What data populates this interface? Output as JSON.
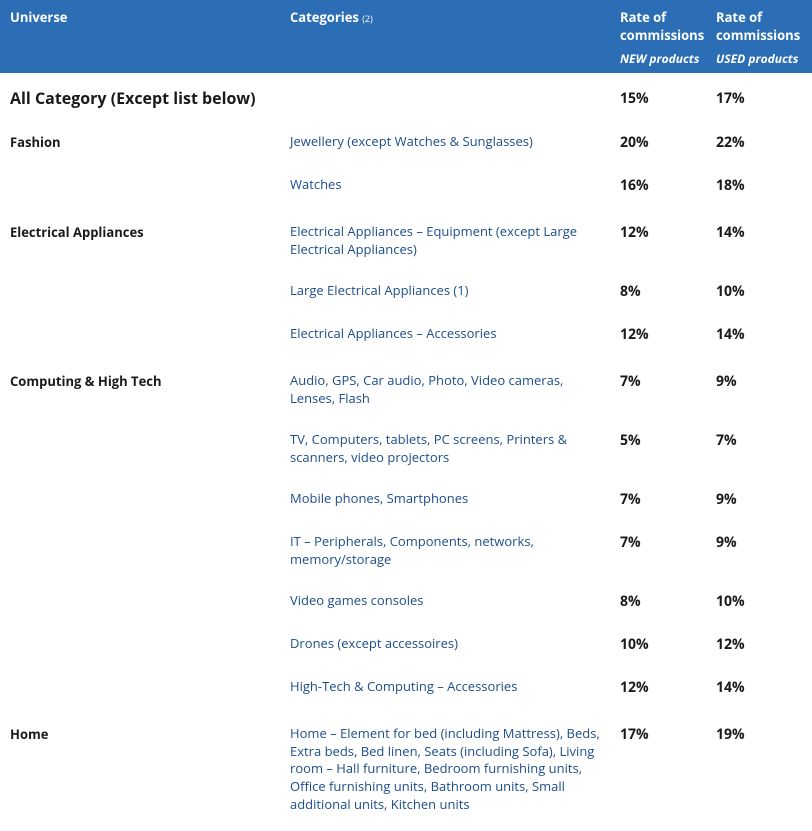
{
  "colors": {
    "header_bg": "#2c6eb5",
    "header_text": "#ffffff",
    "body_text": "#1a1a1a",
    "category_text": "#1d4e89",
    "row_bg": "#ffffff"
  },
  "header": {
    "universe": "Universe",
    "categories": "Categories",
    "categories_footnote": "(2)",
    "rate_new_line1": "Rate of",
    "rate_new_line2": "commissions",
    "rate_new_sub": "NEW products",
    "rate_used_line1": "Rate of",
    "rate_used_line2": "commissions",
    "rate_used_sub": "USED products"
  },
  "grand": {
    "label": "All Category (Except list below)",
    "new": "15%",
    "used": "17%"
  },
  "groups": [
    {
      "universe": "Fashion",
      "rows": [
        {
          "category": "Jewellery (except Watches & Sunglasses)",
          "new": "20%",
          "used": "22%"
        },
        {
          "category": "Watches",
          "new": "16%",
          "used": "18%"
        }
      ]
    },
    {
      "universe": "Electrical Appliances",
      "rows": [
        {
          "category": "Electrical Appliances – Equipment (except Large Electrical Appliances)",
          "new": "12%",
          "used": "14%"
        },
        {
          "category": "Large Electrical Appliances (1)",
          "new": "8%",
          "used": "10%"
        },
        {
          "category": "Electrical Appliances – Accessories",
          "new": "12%",
          "used": "14%"
        }
      ]
    },
    {
      "universe": "Computing & High Tech",
      "rows": [
        {
          "category": "Audio, GPS, Car audio, Photo, Video cameras, Lenses, Flash",
          "new": "7%",
          "used": "9%"
        },
        {
          "category": "TV, Computers, tablets, PC screens, Printers & scanners, video projectors",
          "new": "5%",
          "used": "7%"
        },
        {
          "category": "Mobile phones, Smartphones",
          "new": "7%",
          "used": "9%"
        },
        {
          "category": "IT – Peripherals, Components, networks, memory/storage",
          "new": "7%",
          "used": "9%"
        },
        {
          "category": "Video games consoles",
          "new": "8%",
          "used": "10%"
        },
        {
          "category": "Drones (except accessoires)",
          "new": "10%",
          "used": "12%"
        },
        {
          "category": "High-Tech & Computing – Accessories",
          "new": "12%",
          "used": "14%"
        }
      ]
    },
    {
      "universe": "Home",
      "rows": [
        {
          "category": "Home – Element for bed (including Mattress), Beds, Extra beds, Bed linen, Seats (including Sofa), Living room – Hall furniture, Bedroom furnishing units, Office furnishing units, Bathroom units, Small additional units, Kitchen units",
          "new": "17%",
          "used": "19%"
        }
      ]
    }
  ]
}
